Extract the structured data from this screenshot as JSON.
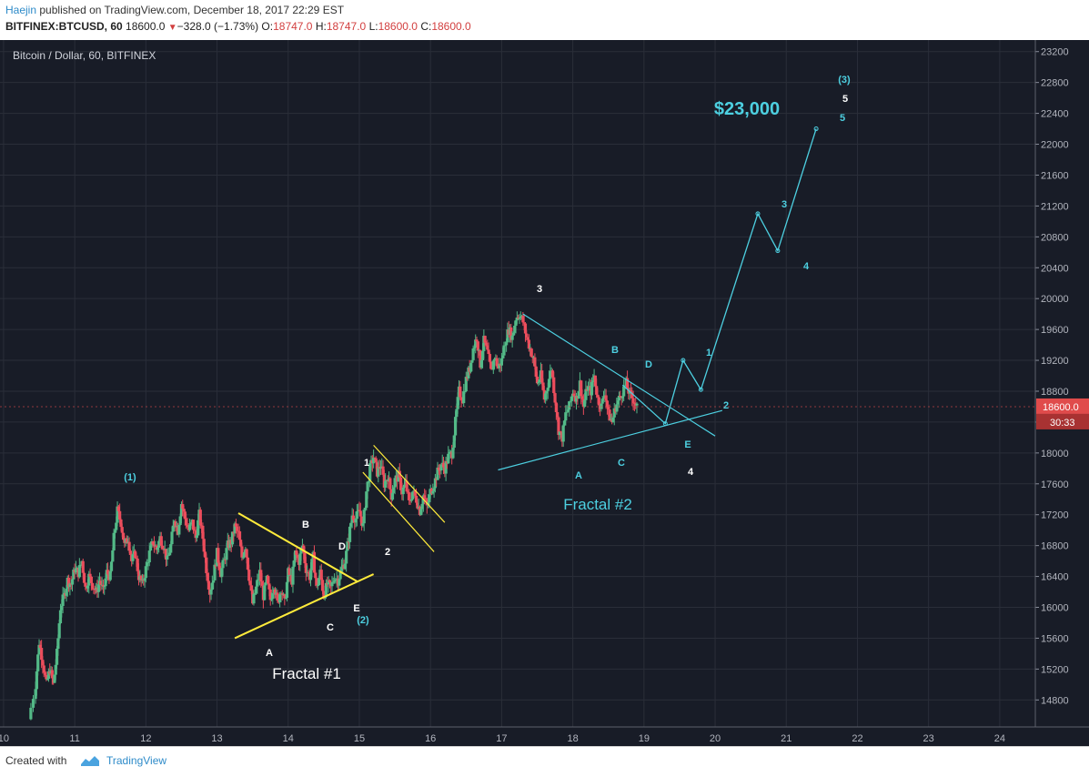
{
  "header": {
    "author": "Haejin",
    "published_text": "published on TradingView.com, December 18, 2017 22:29 EST",
    "symbol": "BITFINEX:BTCUSD, 60",
    "last_price": "18600.0",
    "change_arrow": "▼",
    "change": "−328.0 (−1.73%)",
    "o_label": "O:",
    "o_value": "18747.0",
    "h_label": "H:",
    "h_value": "18747.0",
    "l_label": "L:",
    "l_value": "18600.0",
    "c_label": "C:",
    "c_value": "18600.0"
  },
  "footer": {
    "created_with": "Created with",
    "brand": "TradingView"
  },
  "colors": {
    "background": "#181c27",
    "grid": "#2a2e39",
    "up": "#53b987",
    "down": "#eb4d5c",
    "yellow": "#ffeb3b",
    "cyan": "#4dd0e1",
    "price_tag": "#e04b4b"
  },
  "chart_data": {
    "type": "candlestick",
    "title": "Bitcoin / Dollar, 60, BITFINEX",
    "x_ticks": [
      "10",
      "11",
      "12",
      "13",
      "14",
      "15",
      "16",
      "17",
      "18",
      "19",
      "20",
      "21",
      "22",
      "23",
      "24"
    ],
    "xlim": [
      9.95,
      24.5
    ],
    "y_ticks": [
      14800,
      15200,
      15600,
      16000,
      16400,
      16800,
      17200,
      17600,
      18000,
      18400,
      18800,
      19200,
      19600,
      20000,
      20400,
      20800,
      21200,
      21600,
      22000,
      22400,
      22800,
      23200
    ],
    "ylim": [
      14450,
      23350
    ],
    "grid": true,
    "price_path": [
      [
        10.35,
        14550
      ],
      [
        10.45,
        15000
      ],
      [
        10.5,
        15550
      ],
      [
        10.55,
        15300
      ],
      [
        10.6,
        15000
      ],
      [
        10.65,
        15200
      ],
      [
        10.7,
        15000
      ],
      [
        10.75,
        15400
      ],
      [
        10.8,
        16000
      ],
      [
        10.85,
        16150
      ],
      [
        10.9,
        16350
      ],
      [
        10.95,
        16300
      ],
      [
        11.0,
        16500
      ],
      [
        11.05,
        16450
      ],
      [
        11.1,
        16600
      ],
      [
        11.15,
        16250
      ],
      [
        11.2,
        16400
      ],
      [
        11.25,
        16300
      ],
      [
        11.3,
        16200
      ],
      [
        11.35,
        16350
      ],
      [
        11.4,
        16200
      ],
      [
        11.45,
        16450
      ],
      [
        11.5,
        16400
      ],
      [
        11.55,
        16900
      ],
      [
        11.6,
        17250
      ],
      [
        11.65,
        17100
      ],
      [
        11.7,
        16800
      ],
      [
        11.75,
        16900
      ],
      [
        11.8,
        16600
      ],
      [
        11.85,
        16700
      ],
      [
        11.9,
        16400
      ],
      [
        11.95,
        16300
      ],
      [
        12.0,
        16500
      ],
      [
        12.05,
        16700
      ],
      [
        12.1,
        16850
      ],
      [
        12.15,
        16750
      ],
      [
        12.2,
        16900
      ],
      [
        12.25,
        16800
      ],
      [
        12.3,
        16600
      ],
      [
        12.35,
        16800
      ],
      [
        12.4,
        17150
      ],
      [
        12.45,
        17000
      ],
      [
        12.5,
        17350
      ],
      [
        12.55,
        17150
      ],
      [
        12.6,
        17000
      ],
      [
        12.65,
        17100
      ],
      [
        12.7,
        16900
      ],
      [
        12.75,
        17200
      ],
      [
        12.8,
        16900
      ],
      [
        12.85,
        16500
      ],
      [
        12.9,
        16200
      ],
      [
        12.95,
        16400
      ],
      [
        13.0,
        16700
      ],
      [
        13.05,
        16450
      ],
      [
        13.1,
        16600
      ],
      [
        13.15,
        16800
      ],
      [
        13.2,
        16850
      ],
      [
        13.25,
        17050
      ],
      [
        13.3,
        16950
      ],
      [
        13.35,
        16650
      ],
      [
        13.4,
        16800
      ],
      [
        13.45,
        16400
      ],
      [
        13.5,
        16050
      ],
      [
        13.55,
        16250
      ],
      [
        13.6,
        16450
      ],
      [
        13.65,
        16150
      ],
      [
        13.7,
        16350
      ],
      [
        13.75,
        16100
      ],
      [
        13.8,
        16300
      ],
      [
        13.85,
        16050
      ],
      [
        13.9,
        16250
      ],
      [
        13.95,
        16050
      ],
      [
        14.0,
        16450
      ],
      [
        14.05,
        16350
      ],
      [
        14.1,
        16700
      ],
      [
        14.15,
        16600
      ],
      [
        14.2,
        16800
      ],
      [
        14.25,
        16500
      ],
      [
        14.3,
        16400
      ],
      [
        14.35,
        16650
      ],
      [
        14.4,
        16250
      ],
      [
        14.45,
        16450
      ],
      [
        14.5,
        16150
      ],
      [
        14.55,
        16300
      ],
      [
        14.6,
        16250
      ],
      [
        14.65,
        16400
      ],
      [
        14.7,
        16350
      ],
      [
        14.75,
        16500
      ],
      [
        14.8,
        16600
      ],
      [
        14.85,
        16900
      ],
      [
        14.9,
        17200
      ],
      [
        14.95,
        17150
      ],
      [
        15.0,
        17250
      ],
      [
        15.05,
        17050
      ],
      [
        15.1,
        17500
      ],
      [
        15.15,
        17800
      ],
      [
        15.2,
        17950
      ],
      [
        15.25,
        17750
      ],
      [
        15.3,
        17850
      ],
      [
        15.35,
        17600
      ],
      [
        15.4,
        17700
      ],
      [
        15.45,
        17450
      ],
      [
        15.5,
        17650
      ],
      [
        15.55,
        17700
      ],
      [
        15.6,
        17500
      ],
      [
        15.65,
        17600
      ],
      [
        15.7,
        17350
      ],
      [
        15.75,
        17500
      ],
      [
        15.8,
        17400
      ],
      [
        15.85,
        17250
      ],
      [
        15.9,
        17450
      ],
      [
        15.95,
        17300
      ],
      [
        16.0,
        17500
      ],
      [
        16.05,
        17600
      ],
      [
        16.1,
        17750
      ],
      [
        16.15,
        17850
      ],
      [
        16.2,
        17800
      ],
      [
        16.25,
        17950
      ],
      [
        16.3,
        18000
      ],
      [
        16.35,
        18400
      ],
      [
        16.4,
        18800
      ],
      [
        16.45,
        18700
      ],
      [
        16.5,
        18950
      ],
      [
        16.55,
        19100
      ],
      [
        16.6,
        19350
      ],
      [
        16.65,
        19500
      ],
      [
        16.7,
        19150
      ],
      [
        16.75,
        19450
      ],
      [
        16.8,
        19300
      ],
      [
        16.85,
        19050
      ],
      [
        16.9,
        19250
      ],
      [
        16.95,
        19100
      ],
      [
        17.0,
        19200
      ],
      [
        17.05,
        19450
      ],
      [
        17.1,
        19600
      ],
      [
        17.15,
        19500
      ],
      [
        17.2,
        19750
      ],
      [
        17.25,
        19800
      ],
      [
        17.3,
        19700
      ],
      [
        17.35,
        19500
      ],
      [
        17.4,
        19350
      ],
      [
        17.45,
        19200
      ],
      [
        17.5,
        18900
      ],
      [
        17.55,
        19000
      ],
      [
        17.6,
        18700
      ],
      [
        17.65,
        18900
      ],
      [
        17.7,
        19100
      ],
      [
        17.75,
        18700
      ],
      [
        17.8,
        18300
      ],
      [
        17.85,
        18200
      ],
      [
        17.9,
        18500
      ],
      [
        17.95,
        18600
      ],
      [
        18.0,
        18800
      ],
      [
        18.05,
        18700
      ],
      [
        18.1,
        18900
      ],
      [
        18.15,
        18600
      ],
      [
        18.2,
        18850
      ],
      [
        18.25,
        18800
      ],
      [
        18.3,
        19000
      ],
      [
        18.35,
        18700
      ],
      [
        18.4,
        18600
      ],
      [
        18.45,
        18800
      ],
      [
        18.5,
        18500
      ],
      [
        18.55,
        18400
      ],
      [
        18.6,
        18600
      ],
      [
        18.65,
        18700
      ],
      [
        18.7,
        18800
      ],
      [
        18.75,
        18900
      ],
      [
        18.8,
        18750
      ],
      [
        18.85,
        18700
      ],
      [
        18.9,
        18600
      ]
    ],
    "last_price_tag": "18600.0",
    "countdown_tag": "30:33"
  },
  "annotations": {
    "target": "$23,000",
    "fractal1": "Fractal #1",
    "fractal2": "Fractal #2",
    "wave1_paren": "(1)",
    "wave2_paren": "(2)",
    "wave3_paren": "(3)",
    "f1_A": "A",
    "f1_B": "B",
    "f1_C": "C",
    "f1_D": "D",
    "f1_E": "E",
    "w1": "1",
    "w2": "2",
    "w3": "3",
    "w4": "4",
    "w5": "5",
    "f2_A": "A",
    "f2_B": "B",
    "f2_C": "C",
    "f2_D": "D",
    "f2_E": "E",
    "p1": "1",
    "p2": "2",
    "p3": "3",
    "p4": "4",
    "p5": "5"
  }
}
